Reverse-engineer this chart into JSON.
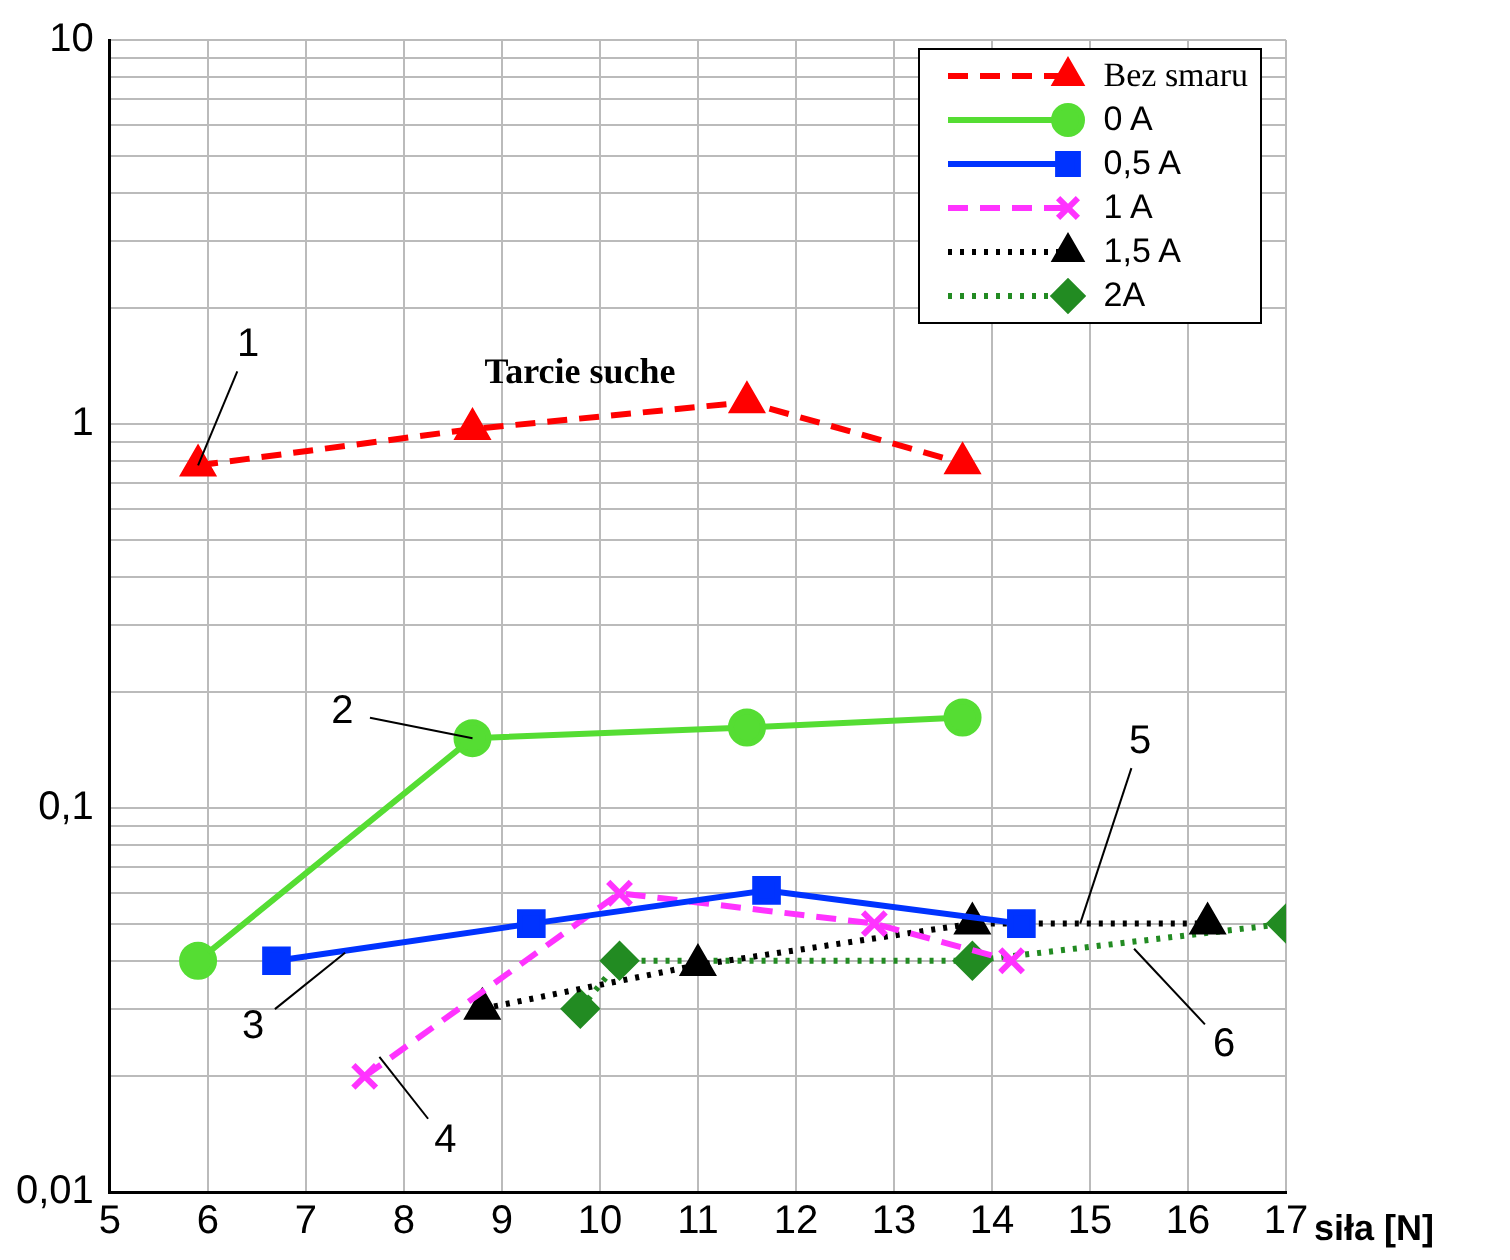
{
  "chart_data": {
    "type": "line",
    "xlabel": "siła [N]",
    "xlim": [
      5,
      17
    ],
    "xticks": [
      5,
      6,
      7,
      8,
      9,
      10,
      11,
      12,
      13,
      14,
      15,
      16,
      17
    ],
    "ylim": [
      0.01,
      10
    ],
    "log": "y",
    "grid": true,
    "legend": "top right",
    "yticks": [
      {
        "value": 0.01,
        "label": "0,01"
      },
      {
        "value": 0.02,
        "label": null
      },
      {
        "value": 0.03,
        "label": null
      },
      {
        "value": 0.04,
        "label": null
      },
      {
        "value": 0.05,
        "label": null
      },
      {
        "value": 0.06,
        "label": null
      },
      {
        "value": 0.07,
        "label": null
      },
      {
        "value": 0.08,
        "label": null
      },
      {
        "value": 0.09,
        "label": null
      },
      {
        "value": 0.1,
        "label": "0,1"
      },
      {
        "value": 0.2,
        "label": null
      },
      {
        "value": 0.3,
        "label": null
      },
      {
        "value": 0.4,
        "label": null
      },
      {
        "value": 0.5,
        "label": null
      },
      {
        "value": 0.6,
        "label": null
      },
      {
        "value": 0.7,
        "label": null
      },
      {
        "value": 0.8,
        "label": null
      },
      {
        "value": 0.9,
        "label": null
      },
      {
        "value": 1,
        "label": "1"
      },
      {
        "value": 2,
        "label": null
      },
      {
        "value": 3,
        "label": null
      },
      {
        "value": 4,
        "label": null
      },
      {
        "value": 5,
        "label": null
      },
      {
        "value": 6,
        "label": null
      },
      {
        "value": 7,
        "label": null
      },
      {
        "value": 8,
        "label": null
      },
      {
        "value": 9,
        "label": null
      },
      {
        "value": 10,
        "label": "10"
      }
    ],
    "series": [
      {
        "name": "Bez smaru",
        "color": "#ff0000",
        "marker": "triangle",
        "line_style": "dashed",
        "x": [
          5.9,
          8.7,
          11.5,
          13.7
        ],
        "values": [
          0.78,
          0.97,
          1.14,
          0.79
        ]
      },
      {
        "name": "0 A",
        "color": "#55dd33",
        "marker": "circle",
        "line_style": "solid",
        "x": [
          5.9,
          8.7,
          11.5,
          13.7
        ],
        "values": [
          0.04,
          0.152,
          0.162,
          0.172
        ]
      },
      {
        "name": "0,5 A",
        "color": "#0033ff",
        "marker": "square",
        "line_style": "solid",
        "x": [
          6.7,
          9.3,
          11.7,
          14.3
        ],
        "values": [
          0.04,
          0.05,
          0.061,
          0.05
        ]
      },
      {
        "name": "1 A",
        "color": "#ff33ff",
        "marker": "cross",
        "line_style": "dashed",
        "x": [
          7.6,
          10.2,
          12.8,
          14.2
        ],
        "values": [
          0.02,
          0.06,
          0.05,
          0.04
        ]
      },
      {
        "name": "1,5 A",
        "color": "#000000",
        "marker": "triangle",
        "line_style": "dotted",
        "x": [
          8.8,
          11,
          13.8,
          16.2
        ],
        "values": [
          0.03,
          0.039,
          0.05,
          0.05
        ]
      },
      {
        "name": "2A",
        "color": "#228b22",
        "marker": "diamond",
        "line_style": "dotted",
        "x": [
          9.8,
          10.2,
          13.8,
          17
        ],
        "values": [
          0.03,
          0.04,
          0.04,
          0.05
        ]
      }
    ],
    "annotations": [
      "Tarcie suche",
      {
        "text": "1",
        "x": 5.9,
        "y": 0.78
      },
      {
        "text": "2",
        "x": 8.7,
        "y": 0.152
      },
      {
        "text": "3",
        "x": 7.4,
        "y": 0.042
      },
      {
        "text": "4",
        "x": 7.75,
        "y": 0.0225
      },
      {
        "text": "5",
        "x": 14.9,
        "y": 0.05
      },
      {
        "text": "6",
        "x": 15.45,
        "y": 0.043
      }
    ]
  }
}
